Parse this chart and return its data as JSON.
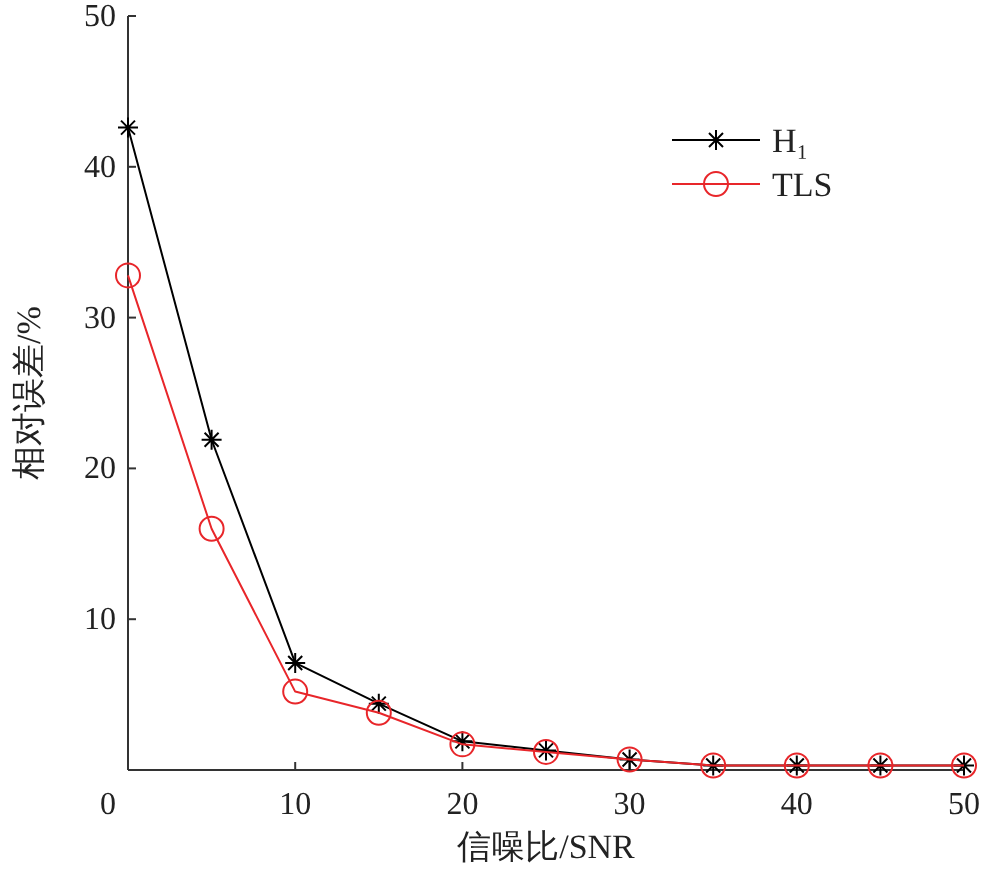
{
  "chart_data": {
    "type": "line",
    "xlabel": "信噪比/SNR",
    "ylabel": "相对误差/%",
    "x": [
      0,
      5,
      10,
      15,
      20,
      25,
      30,
      35,
      40,
      45,
      50
    ],
    "series": [
      {
        "name": "H₁",
        "color": "#000000",
        "marker": "cross",
        "values": [
          42.6,
          21.9,
          7.1,
          4.4,
          1.9,
          1.3,
          0.7,
          0.3,
          0.3,
          0.3,
          0.3
        ]
      },
      {
        "name": "TLS",
        "color": "#e8262a",
        "marker": "circle",
        "values": [
          32.8,
          16.0,
          5.2,
          3.8,
          1.7,
          1.2,
          0.7,
          0.3,
          0.3,
          0.3,
          0.3
        ]
      }
    ],
    "xlim": [
      0,
      50
    ],
    "ylim": [
      0,
      50
    ],
    "xticks": [
      0,
      10,
      20,
      30,
      40,
      50
    ],
    "yticks": [
      10,
      20,
      30,
      40,
      50
    ],
    "grid": false,
    "legend": "top right",
    "line_style": "solid"
  }
}
